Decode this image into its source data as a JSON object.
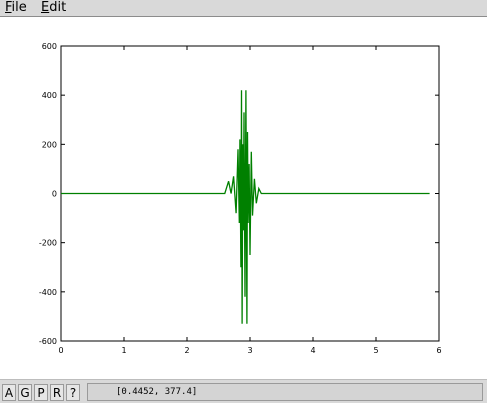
{
  "menu": {
    "file": {
      "mnemonic": "F",
      "rest": "ile"
    },
    "edit": {
      "mnemonic": "E",
      "rest": "dit"
    }
  },
  "toolbar": {
    "buttons": [
      "A",
      "G",
      "P",
      "R",
      "?"
    ],
    "coordinate_readout": "[0.4452, 377.4]"
  },
  "chart_data": {
    "type": "line",
    "title": "",
    "xlabel": "",
    "ylabel": "",
    "xlim": [
      0,
      6
    ],
    "ylim": [
      -600,
      600
    ],
    "x_ticks": [
      0,
      1,
      2,
      3,
      4,
      5,
      6
    ],
    "y_ticks": [
      600,
      400,
      200,
      0,
      -200,
      -400,
      -600
    ],
    "grid": false,
    "legend": "none",
    "series": [
      {
        "color": "#008000",
        "x": [
          0,
          2.6,
          2.66,
          2.7,
          2.74,
          2.78,
          2.81,
          2.83,
          2.84,
          2.855,
          2.865,
          2.875,
          2.885,
          2.895,
          2.905,
          2.92,
          2.935,
          2.95,
          2.96,
          2.97,
          2.985,
          3.0,
          3.02,
          3.04,
          3.07,
          3.1,
          3.14,
          3.18,
          5.85
        ],
        "y": [
          0,
          0,
          50,
          0,
          70,
          -80,
          180,
          -120,
          220,
          -300,
          420,
          -530,
          200,
          -150,
          330,
          -420,
          420,
          -530,
          250,
          -120,
          120,
          -250,
          170,
          -90,
          60,
          -40,
          20,
          0,
          0
        ]
      }
    ]
  }
}
